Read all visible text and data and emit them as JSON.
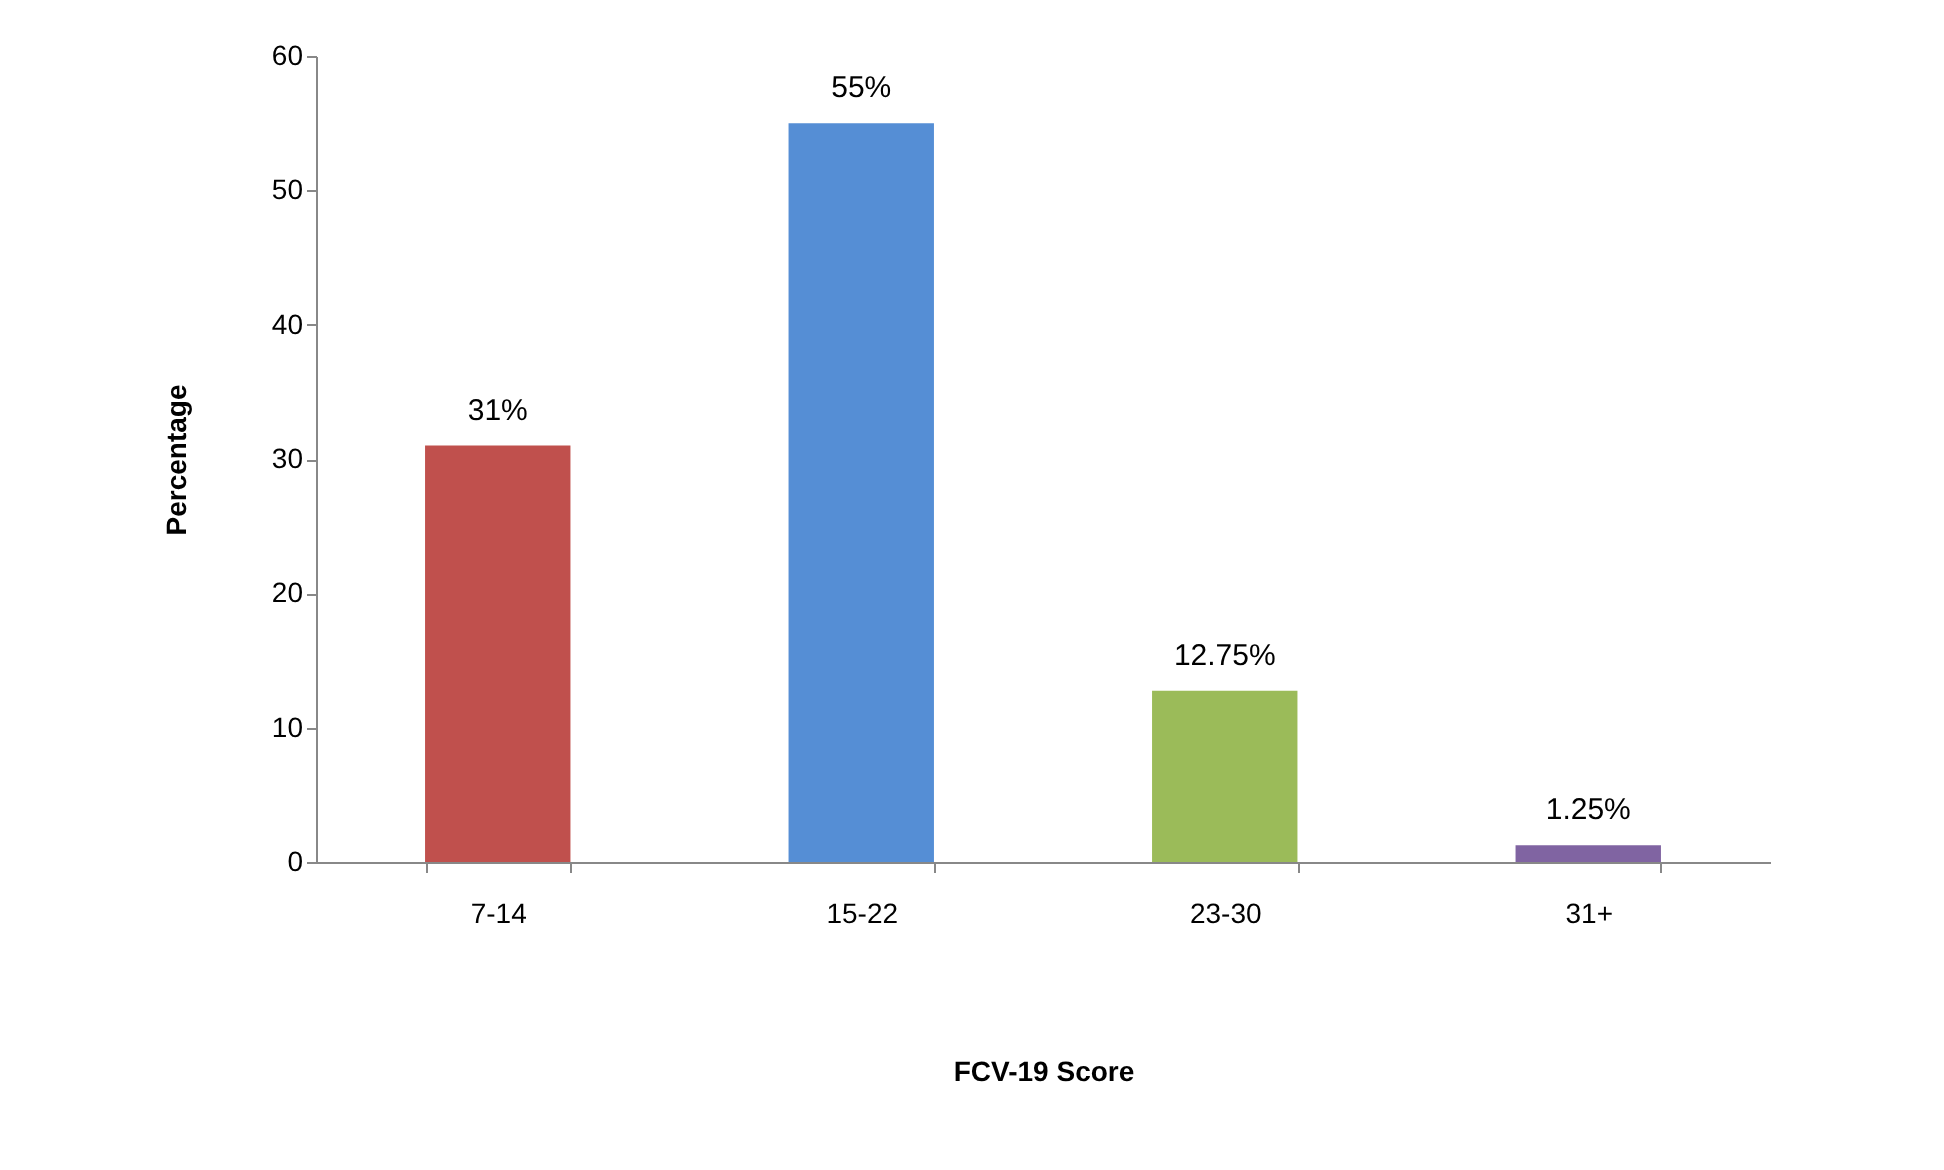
{
  "chart_data": {
    "type": "bar",
    "xlabel": "FCV-19 Score",
    "ylabel": "Percentage",
    "categories": [
      "7-14",
      "15-22",
      "23-30",
      "31+"
    ],
    "values": [
      31,
      55,
      12.75,
      1.25
    ],
    "colors": [
      "#c0504d",
      "#558ed5",
      "#9bbb59",
      "#8064a2"
    ],
    "value_labels": [
      "31%",
      "55%",
      "12.75%",
      "1.25%"
    ],
    "ylim": [
      0,
      60
    ],
    "yticks": [
      0,
      10,
      20,
      30,
      40,
      50,
      60
    ],
    "grid": false
  }
}
